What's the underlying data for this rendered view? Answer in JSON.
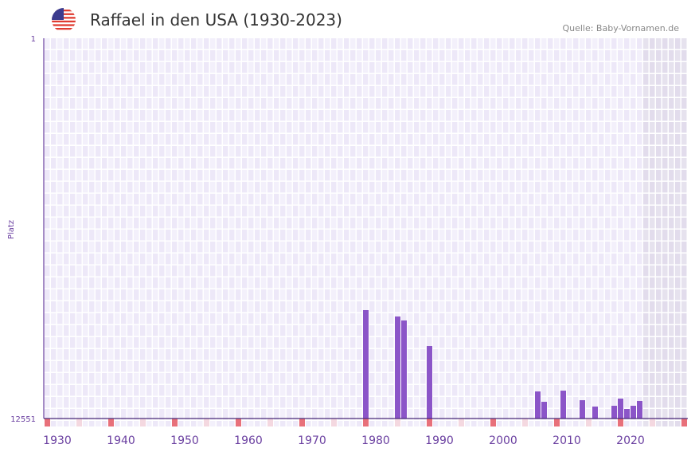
{
  "header": {
    "title": "Raffael in den USA (1930-2023)",
    "source": "Quelle: Baby-Vornamen.de",
    "flag_icon": "us-flag-icon"
  },
  "chart_data": {
    "type": "bar",
    "title": "Raffael in den USA (1930-2023)",
    "ylabel": "Platz",
    "xlabel": "",
    "ylim": [
      12551,
      1
    ],
    "y_tick_labels": [
      "1",
      "12551"
    ],
    "xlim": [
      1928,
      2028
    ],
    "x_tick_labels": [
      "1930",
      "1940",
      "1950",
      "1960",
      "1970",
      "1980",
      "1990",
      "2000",
      "2010",
      "2020"
    ],
    "x_tick_values": [
      1930,
      1940,
      1950,
      1960,
      1970,
      1980,
      1990,
      2000,
      2010,
      2020
    ],
    "shaded_from_year": 2022,
    "bar_color": "#8b55c8",
    "grid": true,
    "x": [
      1978,
      1983,
      1984,
      1988,
      2005,
      2006,
      2009,
      2012,
      2014,
      2017,
      2018,
      2019,
      2020,
      2021
    ],
    "values": [
      8973,
      9184,
      9315,
      10157,
      11657,
      11999,
      11631,
      11946,
      12156,
      12130,
      11893,
      12235,
      12130,
      11972
    ]
  }
}
